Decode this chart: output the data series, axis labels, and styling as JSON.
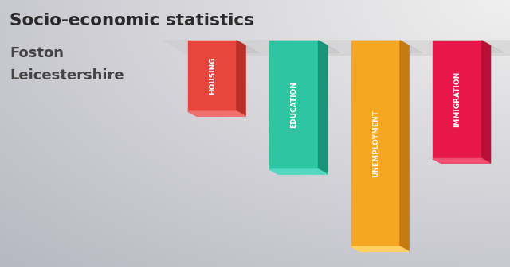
{
  "title_line1": "Socio-economic statistics",
  "title_line2": "Foston",
  "title_line3": "Leicestershire",
  "categories": [
    "HOUSING",
    "EDUCATION",
    "UNEMPLOYMENT",
    "IMMIGRATION"
  ],
  "values": [
    0.33,
    0.6,
    0.96,
    0.55
  ],
  "bar_colors": [
    "#E8453C",
    "#2DC5A2",
    "#F5A623",
    "#E8174A"
  ],
  "bar_side_colors": [
    "#B83028",
    "#1A9478",
    "#C47A10",
    "#B81038"
  ],
  "bar_top_colors": [
    "#F07070",
    "#50D8C0",
    "#FFD060",
    "#F05070"
  ],
  "floor_color": "#DDDDDD",
  "text_color_title": "#2A2A2A",
  "text_color_sub": "#444444"
}
